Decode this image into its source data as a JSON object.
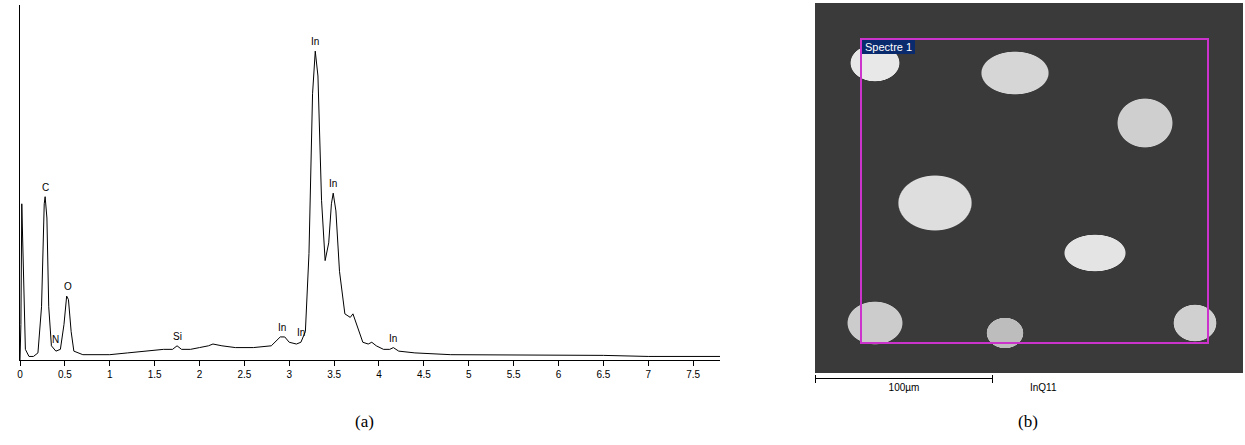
{
  "chart_data": {
    "type": "line",
    "panel_label": "(a)",
    "color": "#000000",
    "tick_labels": "x",
    "grid": false,
    "xlim": [
      0,
      7.8
    ],
    "xticks": [
      0,
      0.5,
      1,
      1.5,
      2,
      2.5,
      3,
      3.5,
      4,
      4.5,
      5,
      5.5,
      6,
      6.5,
      7,
      7.5
    ],
    "ylim": [
      0,
      100
    ],
    "x": [
      0,
      0.01,
      0.02,
      0.04,
      0.06,
      0.1,
      0.15,
      0.2,
      0.24,
      0.27,
      0.28,
      0.3,
      0.32,
      0.35,
      0.38,
      0.4,
      0.45,
      0.49,
      0.52,
      0.54,
      0.57,
      0.6,
      0.7,
      0.8,
      1.0,
      1.2,
      1.4,
      1.6,
      1.7,
      1.75,
      1.8,
      1.9,
      2.0,
      2.1,
      2.15,
      2.25,
      2.4,
      2.6,
      2.8,
      2.9,
      2.95,
      3.0,
      3.08,
      3.13,
      3.18,
      3.22,
      3.26,
      3.29,
      3.32,
      3.36,
      3.4,
      3.44,
      3.47,
      3.49,
      3.52,
      3.56,
      3.62,
      3.68,
      3.71,
      3.75,
      3.82,
      3.88,
      3.92,
      3.97,
      4.05,
      4.12,
      4.16,
      4.22,
      4.4,
      4.8,
      5.5,
      6.0,
      6.5,
      7.0,
      7.5,
      7.8
    ],
    "values": [
      0,
      10,
      44,
      20,
      3,
      1,
      1,
      2,
      15,
      44,
      46,
      40,
      15,
      4,
      3,
      2.5,
      3,
      10,
      18,
      17,
      8,
      2.5,
      1.5,
      1.5,
      1.5,
      2,
      2.5,
      3,
      3,
      4,
      3,
      3,
      3.5,
      4,
      4.5,
      4,
      3.5,
      3.5,
      4,
      6.5,
      6.5,
      5,
      4.5,
      5,
      8,
      30,
      75,
      87,
      80,
      45,
      28,
      33,
      44,
      47,
      42,
      25,
      13,
      12,
      13,
      10,
      5,
      4.5,
      5,
      4,
      3,
      3,
      3.5,
      2.5,
      2,
      1.5,
      1.5,
      1.5,
      1.3,
      1,
      1,
      1
    ],
    "annotations": [
      {
        "text": "C",
        "x": 0.28,
        "y": 46
      },
      {
        "text": "N",
        "x": 0.39,
        "y": 3
      },
      {
        "text": "O",
        "x": 0.53,
        "y": 18
      },
      {
        "text": "Si",
        "x": 1.75,
        "y": 4
      },
      {
        "text": "In",
        "x": 2.92,
        "y": 6.5
      },
      {
        "text": "In",
        "x": 3.13,
        "y": 5
      },
      {
        "text": "In",
        "x": 3.29,
        "y": 87
      },
      {
        "text": "In",
        "x": 3.49,
        "y": 47
      },
      {
        "text": "In",
        "x": 4.16,
        "y": 3.5
      }
    ]
  },
  "image_panel": {
    "panel_label": "(b)",
    "box_label": "Spectre 1",
    "scale_bar": "100µm",
    "sample": "InQ11"
  }
}
